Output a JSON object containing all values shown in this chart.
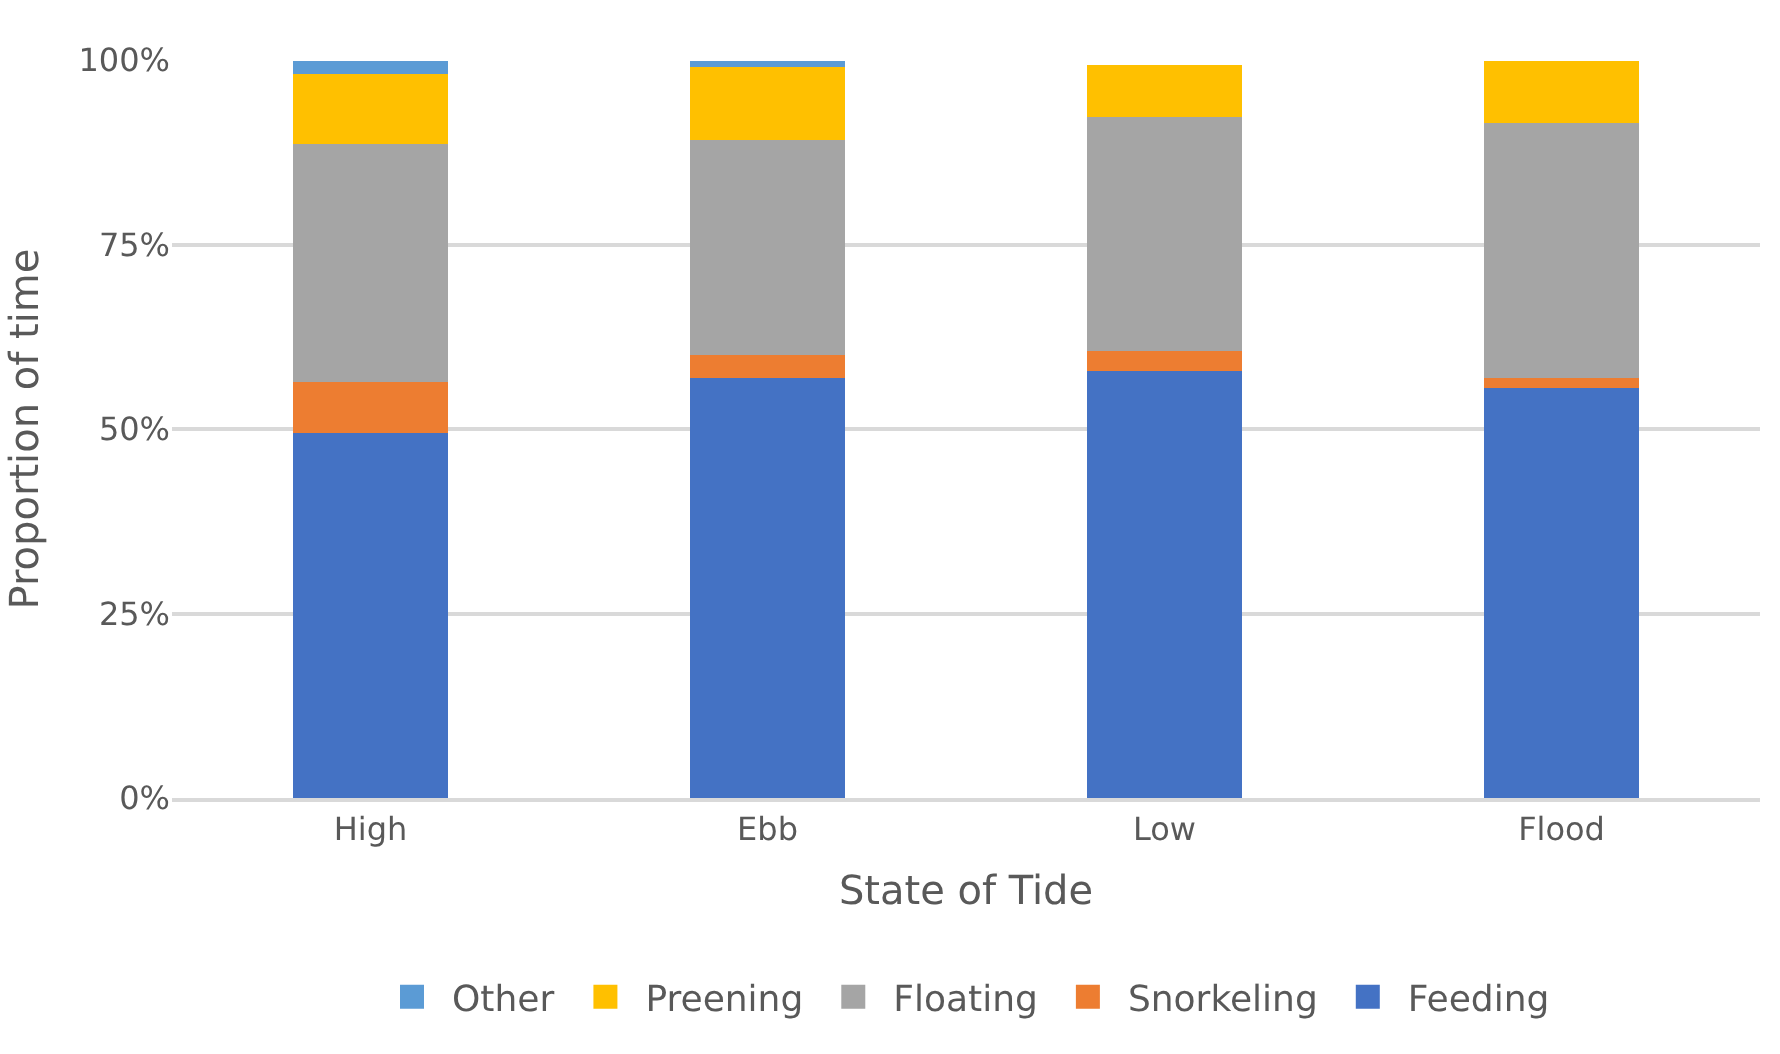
{
  "chart_data": {
    "type": "bar",
    "stacked": true,
    "xlabel": "State of Tide",
    "ylabel": "Proportion of time",
    "categories": [
      "High",
      "Ebb",
      "Low",
      "Flood"
    ],
    "series": [
      {
        "name": "Feeding",
        "color": "#4472c4",
        "values": [
          49.5,
          56.9,
          57.8,
          55.5
        ]
      },
      {
        "name": "Snorkeling",
        "color": "#ed7d31",
        "values": [
          6.9,
          3.1,
          2.8,
          1.4
        ]
      },
      {
        "name": "Floating",
        "color": "#a5a5a5",
        "values": [
          32.2,
          29.2,
          31.7,
          34.5
        ]
      },
      {
        "name": "Preening",
        "color": "#ffc000",
        "values": [
          9.5,
          9.8,
          7.0,
          8.4
        ]
      },
      {
        "name": "Other",
        "color": "#5b9bd5",
        "values": [
          1.7,
          0.8,
          0,
          0
        ]
      }
    ],
    "ylim": [
      0,
      100
    ],
    "yticks": [
      {
        "value": 0,
        "label": "0%"
      },
      {
        "value": 25,
        "label": "25%"
      },
      {
        "value": 50,
        "label": "50%"
      },
      {
        "value": 75,
        "label": "75%"
      },
      {
        "value": 100,
        "label": "100%"
      }
    ],
    "grid": "y",
    "legend": "bottom"
  }
}
